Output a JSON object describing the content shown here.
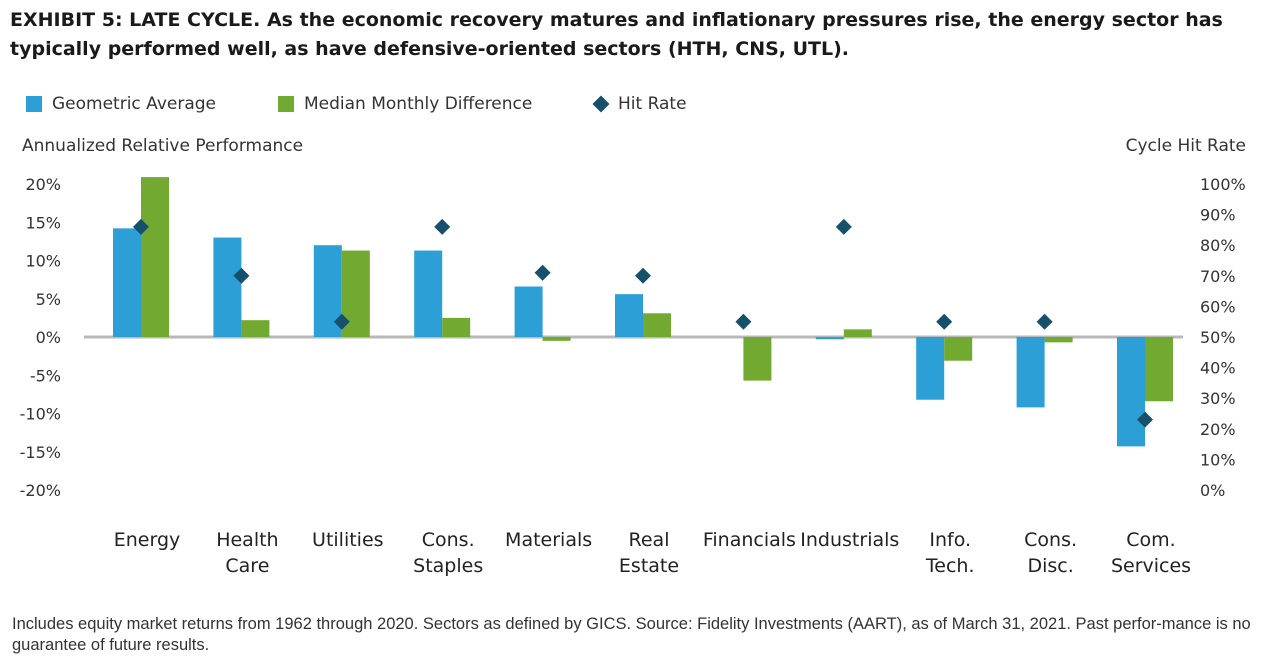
{
  "title": {
    "lead": "EXHIBIT 5: LATE CYCLE.",
    "text": "As the economic recovery matures and inflationary pressures rise, the energy sector has typically performed well, as have defensive-oriented sectors (HTH, CNS, UTL)."
  },
  "colors": {
    "geometric": "#2b9fd6",
    "median": "#72a931",
    "hit": "#17506b",
    "baseline": "#b8b8b8"
  },
  "chart_data": {
    "type": "bar",
    "legend_position": "top-left",
    "grid": false,
    "categories": [
      [
        "Energy"
      ],
      [
        "Health",
        "Care"
      ],
      [
        "Utilities"
      ],
      [
        "Cons.",
        "Staples"
      ],
      [
        "Materials"
      ],
      [
        "Real",
        "Estate"
      ],
      [
        "Financials"
      ],
      [
        "Industrials"
      ],
      [
        "Info.",
        "Tech."
      ],
      [
        "Cons.",
        "Disc."
      ],
      [
        "Com.",
        "Services"
      ]
    ],
    "series": [
      {
        "name": "Geometric Average",
        "axis": "left",
        "values": [
          14.2,
          13.0,
          12.0,
          11.3,
          6.6,
          5.6,
          0,
          -0.3,
          -8.2,
          -9.2,
          -14.3
        ]
      },
      {
        "name": "Median Monthly Difference",
        "axis": "left",
        "values": [
          20.9,
          2.2,
          11.3,
          2.5,
          -0.5,
          3.1,
          -5.7,
          1.0,
          -3.1,
          -0.7,
          -8.4
        ]
      },
      {
        "name": "Hit Rate",
        "axis": "right",
        "type": "scatter",
        "values": [
          86,
          70,
          55,
          86,
          71,
          70,
          55,
          86,
          55,
          55,
          23
        ]
      }
    ],
    "ylabel": "Annualized Relative Performance",
    "y2label": "Cycle Hit Rate",
    "ylim": [
      -20,
      20
    ],
    "y2lim": [
      0,
      100
    ],
    "yticks": [
      "20%",
      "15%",
      "10%",
      "5%",
      "0%",
      "-5%",
      "-10%",
      "-15%",
      "-20%"
    ],
    "y2ticks": [
      "100%",
      "90%",
      "80%",
      "70%",
      "60%",
      "50%",
      "40%",
      "30%",
      "20%",
      "10%",
      "0%"
    ]
  },
  "footnote": "Includes equity market returns from 1962 through 2020. Sectors as defined by GICS. Source: Fidelity Investments (AART), as of March 31, 2021. Past perfor-mance is no guarantee of future results."
}
